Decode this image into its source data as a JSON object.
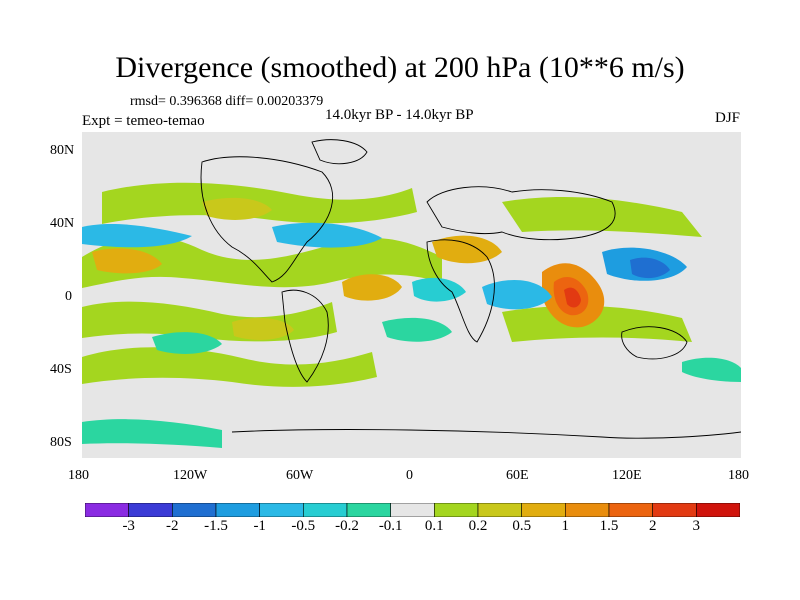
{
  "title": "Divergence (smoothed) at 200 hPa (10**6 m/s)",
  "stats": "rmsd= 0.396368 diff= 0.00203379",
  "experiment": "Expt = temeo-temao",
  "period": "14.0kyr BP - 14.0kyr BP",
  "season": "DJF",
  "map": {
    "lat_ticks": [
      "80N",
      "40N",
      "0",
      "40S",
      "80S"
    ],
    "lon_ticks": [
      "180",
      "120W",
      "60W",
      "0",
      "60E",
      "120E",
      "180"
    ]
  },
  "colorbar": {
    "labels": [
      "-3",
      "-2",
      "-1.5",
      "-1",
      "-0.5",
      "-0.2",
      "-0.1",
      "0.1",
      "0.2",
      "0.5",
      "1",
      "1.5",
      "2",
      "3"
    ],
    "colors": [
      "#8a2be2",
      "#3b3bd6",
      "#1f6fd1",
      "#1e9de0",
      "#2bb9e6",
      "#27cdd2",
      "#2bd6a0",
      "#e6e6e6",
      "#a4d61f",
      "#c9c81b",
      "#e1ad10",
      "#e98d0d",
      "#ec6410",
      "#e23a12",
      "#d0140c"
    ]
  }
}
